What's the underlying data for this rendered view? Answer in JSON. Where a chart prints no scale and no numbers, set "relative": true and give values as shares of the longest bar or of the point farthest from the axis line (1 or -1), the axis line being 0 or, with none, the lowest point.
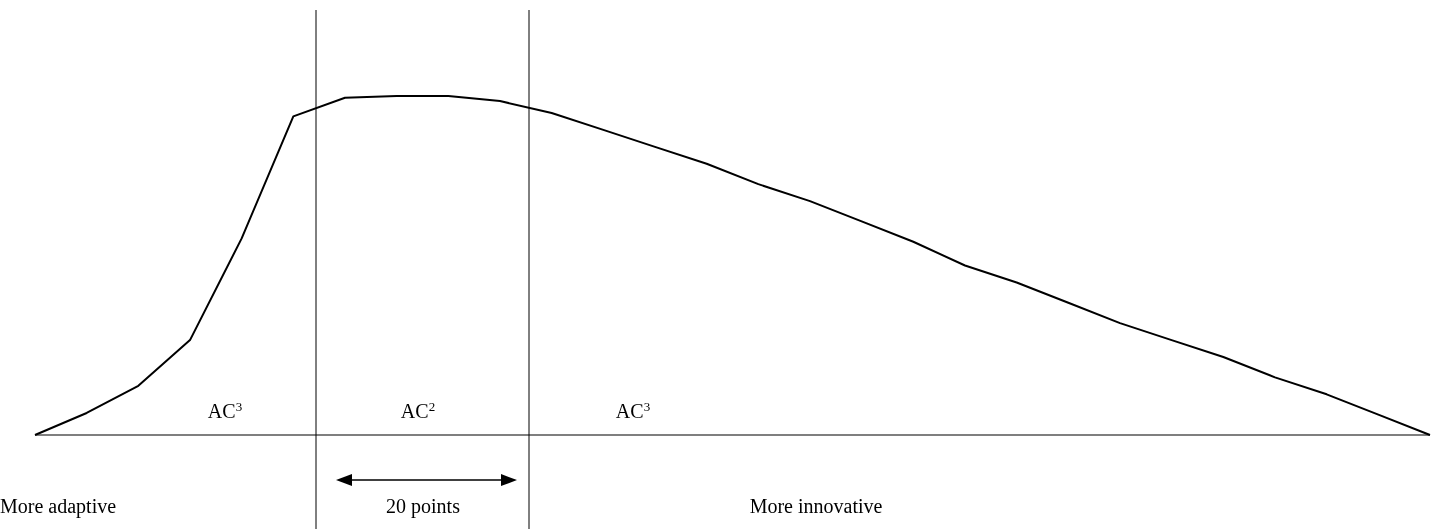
{
  "chart_data": {
    "type": "line",
    "relative": true,
    "tick_labels": false,
    "marker": "none",
    "line_style": "solid",
    "categories": [
      null,
      null,
      null,
      null,
      null,
      null,
      null,
      null,
      null,
      null,
      null,
      null,
      null,
      null,
      null,
      null,
      null,
      null,
      null,
      null,
      null,
      null,
      null,
      null,
      null,
      null,
      null,
      null
    ],
    "series": [
      {
        "color": "#000000",
        "values": [
          0,
          0.065,
          0.145,
          0.28,
          0.58,
          0.94,
          0.995,
          1,
          1,
          0.985,
          0.95,
          0.9,
          0.85,
          0.8,
          0.74,
          0.69,
          0.63,
          0.57,
          0.5,
          0.45,
          0.39,
          0.33,
          0.28,
          0.23,
          0.17,
          0.12,
          0.06,
          0
        ]
      }
    ],
    "annotations": [
      "AC$^{3}$",
      "AC$^{2}$",
      "AC$^{3}$",
      "More adaptive",
      "20 points",
      "More innovative"
    ]
  }
}
